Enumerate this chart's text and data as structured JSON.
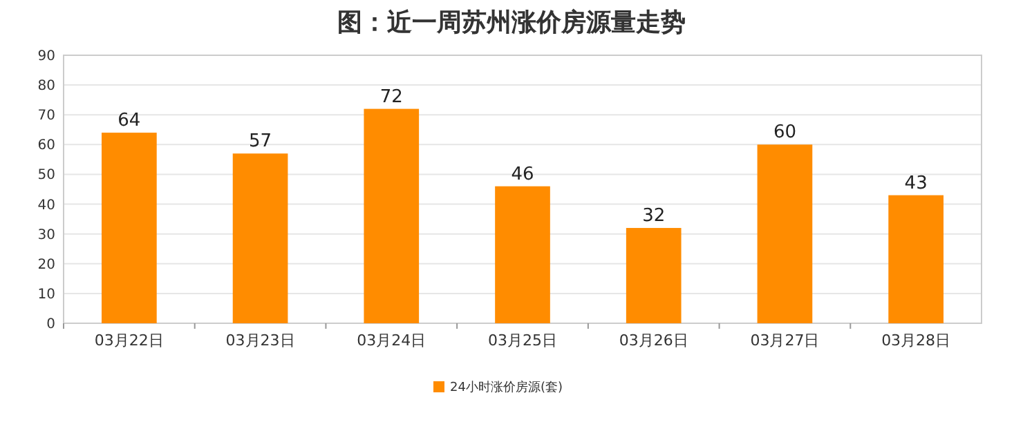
{
  "chart_data": {
    "type": "bar",
    "title": "图：近一周苏州涨价房源量走势",
    "categories": [
      "03月22日",
      "03月23日",
      "03月24日",
      "03月25日",
      "03月26日",
      "03月27日",
      "03月28日"
    ],
    "series": [
      {
        "name": "24小时涨价房源(套)",
        "color": "#ff8c00",
        "values": [
          64,
          57,
          72,
          46,
          32,
          60,
          43
        ]
      }
    ],
    "ylim": [
      0,
      90
    ],
    "yticks": [
      0,
      10,
      20,
      30,
      40,
      50,
      60,
      70,
      80,
      90
    ],
    "grid": "y",
    "data_labels": true,
    "legend": "bottom"
  }
}
